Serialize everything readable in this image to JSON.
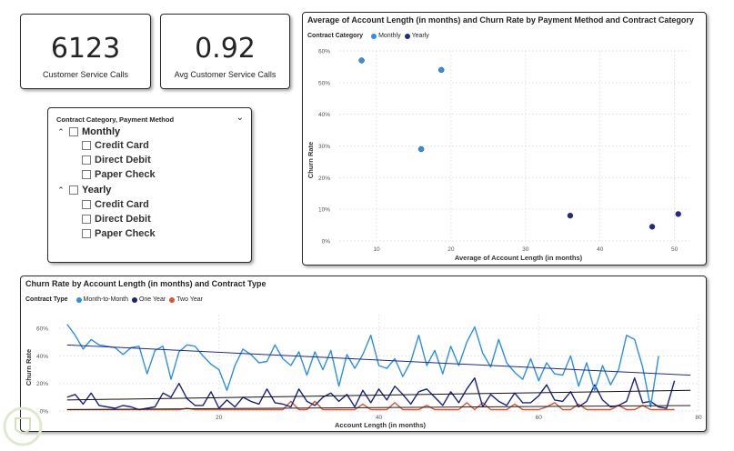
{
  "kpi1": {
    "value": "6123",
    "label": "Customer Service Calls"
  },
  "kpi2": {
    "value": "0.92",
    "label": "Avg Customer Service Calls"
  },
  "slicer": {
    "header": "Contract Category, Payment Method",
    "groups": [
      {
        "label": "Monthly",
        "items": [
          "Credit Card",
          "Direct Debit",
          "Paper Check"
        ]
      },
      {
        "label": "Yearly",
        "items": [
          "Credit Card",
          "Direct Debit",
          "Paper Check"
        ]
      }
    ]
  },
  "colors": {
    "monthly": "#2d8fe6",
    "yearly": "#1f2a8c",
    "month_to_month": "#2d8fe6",
    "one_year": "#1a237e",
    "two_year": "#e0522a"
  },
  "scatter": {
    "title": "Average of Account Length (in months) and Churn Rate by Payment Method and Contract Category",
    "legend_title": "Contract Category",
    "legend": [
      "Monthly",
      "Yearly"
    ],
    "xlabel": "Average of Account Length (in months)",
    "ylabel": "Churn Rate"
  },
  "line": {
    "title": "Churn Rate by Account Length (in months) and Contract Type",
    "legend_title": "Contract Type",
    "legend": [
      "Month-to-Month",
      "One Year",
      "Two Year"
    ],
    "xlabel": "Account Length (in months)",
    "ylabel": "Churn Rate"
  },
  "chart_data": [
    {
      "type": "scatter",
      "title": "Average of Account Length (in months) and Churn Rate by Payment Method and Contract Category",
      "xlabel": "Average of Account Length (in months)",
      "ylabel": "Churn Rate",
      "xlim": [
        5,
        52
      ],
      "ylim": [
        0,
        0.6
      ],
      "xticks": [
        10,
        20,
        30,
        40,
        50
      ],
      "yticks": [
        "0%",
        "10%",
        "20%",
        "30%",
        "40%",
        "50%",
        "60%"
      ],
      "series": [
        {
          "name": "Monthly",
          "points": [
            [
              8,
              0.57
            ],
            [
              16,
              0.29
            ],
            [
              18.7,
              0.54
            ]
          ]
        },
        {
          "name": "Yearly",
          "points": [
            [
              36,
              0.08
            ],
            [
              47,
              0.045
            ],
            [
              50.5,
              0.085
            ]
          ]
        }
      ]
    },
    {
      "type": "line",
      "title": "Churn Rate by Account Length (in months) and Contract Type",
      "xlabel": "Account Length (in months)",
      "ylabel": "Churn Rate",
      "xlim": [
        0,
        80
      ],
      "ylim": [
        0,
        0.7
      ],
      "xticks": [
        20,
        40,
        60,
        80
      ],
      "yticks": [
        "0%",
        "20%",
        "40%",
        "60%"
      ],
      "x_start": 1,
      "series": [
        {
          "name": "Month-to-Month",
          "values": [
            0.63,
            0.55,
            0.45,
            0.52,
            0.48,
            0.47,
            0.46,
            0.41,
            0.46,
            0.47,
            0.27,
            0.44,
            0.47,
            0.23,
            0.43,
            0.48,
            0.47,
            0.4,
            0.34,
            0.3,
            0.15,
            0.33,
            0.45,
            0.41,
            0.35,
            0.36,
            0.48,
            0.38,
            0.33,
            0.43,
            0.26,
            0.43,
            0.3,
            0.44,
            0.18,
            0.41,
            0.31,
            0.41,
            0.55,
            0.33,
            0.31,
            0.38,
            0.25,
            0.36,
            0.55,
            0.33,
            0.44,
            0.27,
            0.47,
            0.33,
            0.5,
            0.61,
            0.42,
            0.32,
            0.52,
            0.35,
            0.28,
            0.23,
            0.38,
            0.22,
            0.35,
            0.27,
            0.26,
            0.4,
            0.18,
            0.35,
            0.15,
            0.33,
            0.19,
            0.3,
            0.55,
            0.52,
            0.32,
            0.03,
            0.4
          ]
        },
        {
          "name": "One Year",
          "values": [
            0.1,
            0.12,
            0.05,
            0.13,
            0.04,
            0.03,
            0.02,
            0.04,
            0.03,
            0.01,
            0.02,
            0.03,
            0.13,
            0.1,
            0.2,
            0.09,
            0.04,
            0.04,
            0.14,
            0.02,
            0.08,
            0.03,
            0.1,
            0.07,
            0.05,
            0.16,
            0.06,
            0.05,
            0.03,
            0.16,
            0.07,
            0.04,
            0.1,
            0.13,
            0.07,
            0.12,
            0.03,
            0.15,
            0.06,
            0.16,
            0.08,
            0.18,
            0.12,
            0.05,
            0.14,
            0.16,
            0.1,
            0.04,
            0.14,
            0.06,
            0.16,
            0.24,
            0.03,
            0.12,
            0.07,
            0.04,
            0.13,
            0.06,
            0.06,
            0.11,
            0.19,
            0.08,
            0.07,
            0.14,
            0.03,
            0.07,
            0.19,
            0.08,
            0.03,
            0.04,
            0.07,
            0.24,
            0.06,
            0.07,
            0.03,
            0.02,
            0.22
          ]
        },
        {
          "name": "Two Year",
          "values": [
            0.01,
            0.01,
            0.01,
            0.01,
            0.01,
            0.01,
            0.01,
            0.01,
            0.01,
            0.01,
            0.01,
            0.01,
            0.01,
            0.01,
            0.01,
            0.02,
            0.01,
            0.01,
            0.01,
            0.01,
            0.01,
            0.01,
            0.01,
            0.01,
            0.01,
            0.01,
            0.01,
            0.01,
            0.07,
            0.01,
            0.01,
            0.07,
            0.01,
            0.01,
            0.01,
            0.01,
            0.01,
            0.05,
            0.01,
            0.01,
            0.01,
            0.06,
            0.01,
            0.01,
            0.01,
            0.04,
            0.01,
            0.01,
            0.01,
            0.01,
            0.06,
            0.01,
            0.06,
            0.01,
            0.01,
            0.01,
            0.05,
            0.01,
            0.01,
            0.01,
            0.03,
            0.06,
            0.01,
            0.01,
            0.05,
            0.01,
            0.01,
            0.01,
            0.01,
            0.04,
            0.01,
            0.01,
            0.04,
            0.01,
            0.01,
            0.01,
            0.01
          ]
        },
        {
          "name": "Month-to-Month trend",
          "trend": [
            [
              1,
              0.48
            ],
            [
              79,
              0.26
            ]
          ]
        },
        {
          "name": "One Year trend",
          "trend": [
            [
              1,
              0.08
            ],
            [
              79,
              0.15
            ]
          ]
        },
        {
          "name": "Two Year trend",
          "trend": [
            [
              1,
              0.01
            ],
            [
              79,
              0.04
            ]
          ]
        }
      ]
    }
  ]
}
